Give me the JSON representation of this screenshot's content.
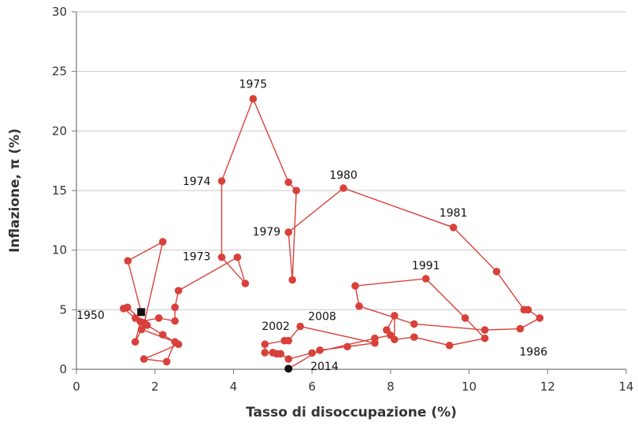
{
  "chart_data": {
    "type": "line",
    "title": "",
    "xlabel": "Tasso di disoccupazione (%)",
    "ylabel": "Inflazione, π (%)",
    "xlim": [
      0,
      14
    ],
    "ylim": [
      0,
      30
    ],
    "xticks": [
      0,
      2,
      4,
      6,
      8,
      10,
      12,
      14
    ],
    "yticks": [
      0,
      5,
      10,
      15,
      20,
      25,
      30
    ],
    "grid": "horizontal",
    "legend": "none",
    "colors": {
      "series": "#d8413a",
      "start_marker": "#111111",
      "end_marker": "#111111",
      "grid": "#c8c8c8"
    },
    "start_marker": "square",
    "end_marker": "circle",
    "points": [
      [
        1.65,
        4.8
      ],
      [
        1.31,
        9.1
      ],
      [
        2.2,
        10.7
      ],
      [
        1.73,
        3.9
      ],
      [
        1.8,
        3.7
      ],
      [
        1.3,
        5.2
      ],
      [
        1.2,
        5.1
      ],
      [
        1.5,
        4.3
      ],
      [
        2.2,
        2.9
      ],
      [
        2.6,
        2.1
      ],
      [
        1.72,
        0.86
      ],
      [
        2.3,
        0.64
      ],
      [
        2.51,
        2.3
      ],
      [
        1.66,
        3.35
      ],
      [
        1.5,
        2.3
      ],
      [
        1.63,
        4.0
      ],
      [
        2.1,
        4.3
      ],
      [
        2.51,
        4.05
      ],
      [
        2.51,
        5.2
      ],
      [
        2.6,
        6.6
      ],
      [
        4.1,
        9.4
      ],
      [
        4.3,
        7.2
      ],
      [
        3.7,
        9.4
      ],
      [
        3.7,
        15.8
      ],
      [
        4.5,
        22.7
      ],
      [
        5.4,
        15.7
      ],
      [
        5.6,
        15.0
      ],
      [
        5.5,
        7.5
      ],
      [
        5.4,
        11.5
      ],
      [
        6.8,
        15.2
      ],
      [
        9.6,
        11.9
      ],
      [
        10.7,
        8.2
      ],
      [
        11.4,
        5.0
      ],
      [
        11.5,
        5.0
      ],
      [
        11.8,
        4.3
      ],
      [
        11.3,
        3.4
      ],
      [
        10.4,
        3.3
      ],
      [
        8.6,
        3.8
      ],
      [
        7.2,
        5.3
      ],
      [
        7.1,
        7.0
      ],
      [
        8.9,
        7.6
      ],
      [
        9.9,
        4.3
      ],
      [
        10.4,
        2.6
      ],
      [
        9.5,
        2.0
      ],
      [
        8.6,
        2.7
      ],
      [
        8.1,
        2.5
      ],
      [
        8.1,
        4.5
      ],
      [
        7.9,
        3.3
      ],
      [
        8.0,
        2.86
      ],
      [
        7.6,
        2.6
      ],
      [
        6.0,
        1.37
      ],
      [
        5.4,
        0.86
      ],
      [
        5.2,
        1.3
      ],
      [
        5.1,
        1.3
      ],
      [
        5.0,
        1.4
      ],
      [
        4.8,
        1.4
      ],
      [
        4.8,
        2.1
      ],
      [
        5.3,
        2.4
      ],
      [
        5.4,
        2.4
      ],
      [
        5.7,
        3.6
      ],
      [
        7.6,
        2.2
      ],
      [
        6.9,
        1.9
      ],
      [
        6.2,
        1.6
      ],
      [
        5.4,
        0.05
      ]
    ],
    "annotations": [
      {
        "label": "1950",
        "x": 1.2,
        "y": 5.1
      },
      {
        "label": "1973",
        "x": 3.7,
        "y": 9.4
      },
      {
        "label": "1974",
        "x": 3.7,
        "y": 15.8
      },
      {
        "label": "1975",
        "x": 4.5,
        "y": 22.7
      },
      {
        "label": "1979",
        "x": 5.4,
        "y": 11.5
      },
      {
        "label": "1980",
        "x": 6.8,
        "y": 15.2
      },
      {
        "label": "1981",
        "x": 9.6,
        "y": 11.9
      },
      {
        "label": "1986",
        "x": 11.3,
        "y": 3.4
      },
      {
        "label": "1991",
        "x": 8.9,
        "y": 7.6
      },
      {
        "label": "2002",
        "x": 4.8,
        "y": 2.1
      },
      {
        "label": "2008",
        "x": 5.7,
        "y": 3.6
      },
      {
        "label": "2014",
        "x": 6.2,
        "y": 1.6
      }
    ]
  }
}
